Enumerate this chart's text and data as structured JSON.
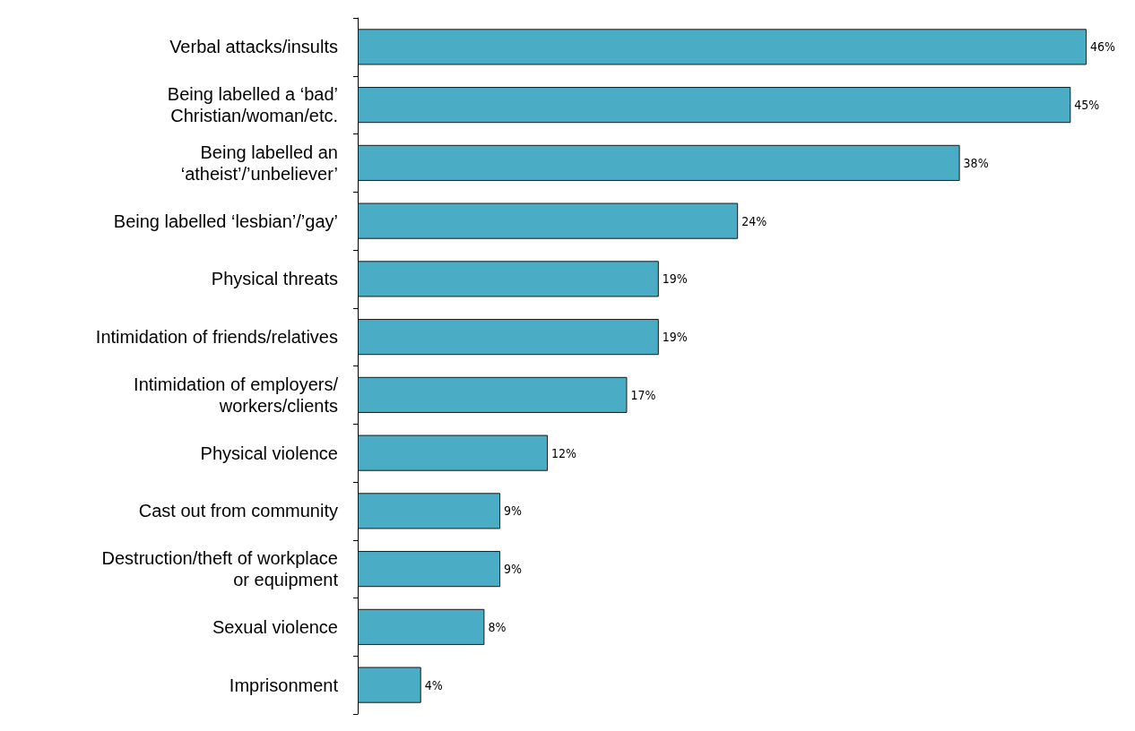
{
  "chart_data": {
    "type": "bar",
    "orientation": "horizontal",
    "color": "#4bacc6",
    "categories": [
      "Verbal attacks/insults",
      "Being labelled a ‘bad’\nChristian/woman/etc.",
      "Being labelled an\n‘atheist’/’unbeliever’",
      "Being labelled ‘lesbian’/’gay’",
      "Physical threats",
      "Intimidation of friends/relatives",
      "Intimidation of employers/\nworkers/clients",
      "Physical violence",
      "Cast out from community",
      "Destruction/theft of workplace\nor equipment",
      "Sexual violence",
      "Imprisonment"
    ],
    "values": [
      46,
      45,
      38,
      24,
      19,
      19,
      17,
      12,
      9,
      9,
      8,
      4
    ],
    "value_labels": [
      "46%",
      "45%",
      "38%",
      "24%",
      "19%",
      "19%",
      "17%",
      "12%",
      "9%",
      "9%",
      "8%",
      "4%"
    ]
  }
}
